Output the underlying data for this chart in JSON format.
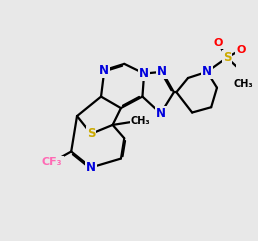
{
  "bg_color": "#e8e8e8",
  "N_color": "#0000dd",
  "S_color": "#ccaa00",
  "F_color": "#ff69b4",
  "O_color": "#ff0000",
  "lw": 1.6,
  "fs": 8.5
}
